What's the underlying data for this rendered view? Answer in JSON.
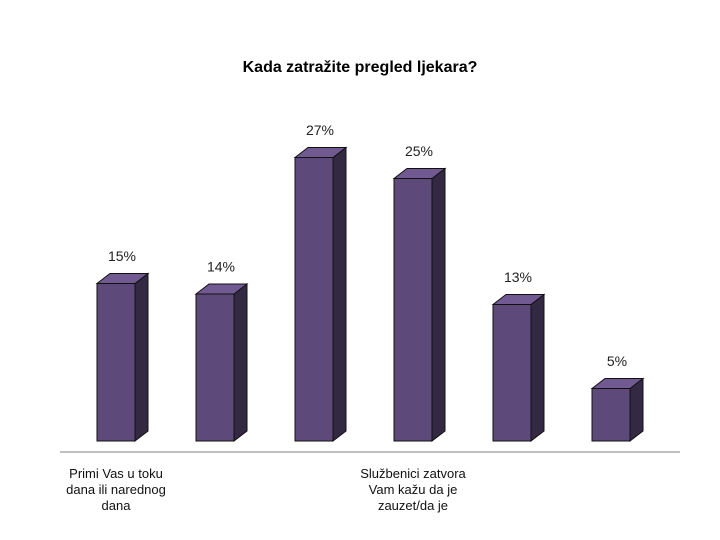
{
  "chart_data": {
    "type": "bar",
    "title": "Kada zatražite pregled ljekara?",
    "categories": [
      "Primi Vas u toku dana ili narednog dana",
      null,
      null,
      "Službenici zatvora Vam kažu da je zauzet/da je",
      null,
      null
    ],
    "values": [
      15,
      14,
      27,
      25,
      13,
      5
    ],
    "value_labels": [
      "15%",
      "14%",
      "27%",
      "25%",
      "13%",
      "5%"
    ],
    "color": "#5e4a7a"
  }
}
